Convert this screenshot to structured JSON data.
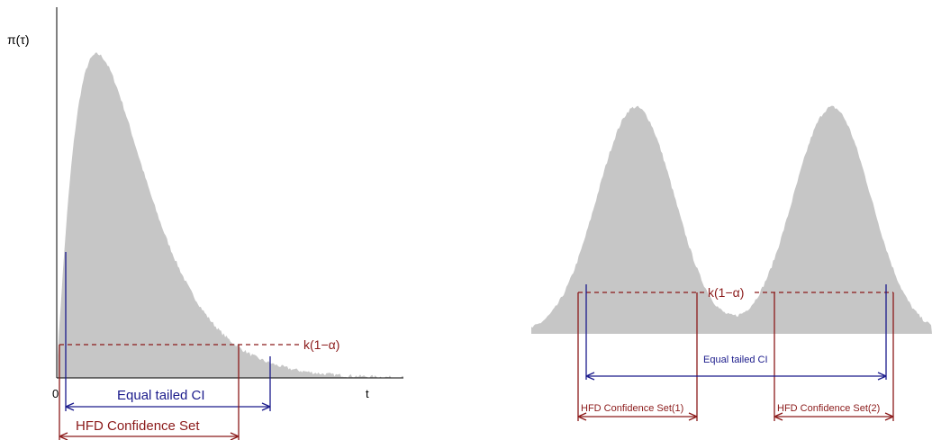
{
  "left_panel": {
    "y_axis_label": "π(τ)",
    "x_tick_zero": "0",
    "x_axis_label": "t",
    "threshold_label": "k(1−α)",
    "equal_tailed_label": "Equal tailed CI",
    "hfd_label": "HFD Confidence Set"
  },
  "right_panel": {
    "threshold_label": "k(1−α)",
    "equal_tailed_label": "Equal tailed CI",
    "hfd_label_1": "HFD Confidence Set(1)",
    "hfd_label_2": "HFD Confidence Set(2)"
  },
  "colors": {
    "histogram": "#c6c6c6",
    "hfd": "#8b1a1a",
    "equal_tailed": "#1a1a8b",
    "axis": "#000000"
  }
}
